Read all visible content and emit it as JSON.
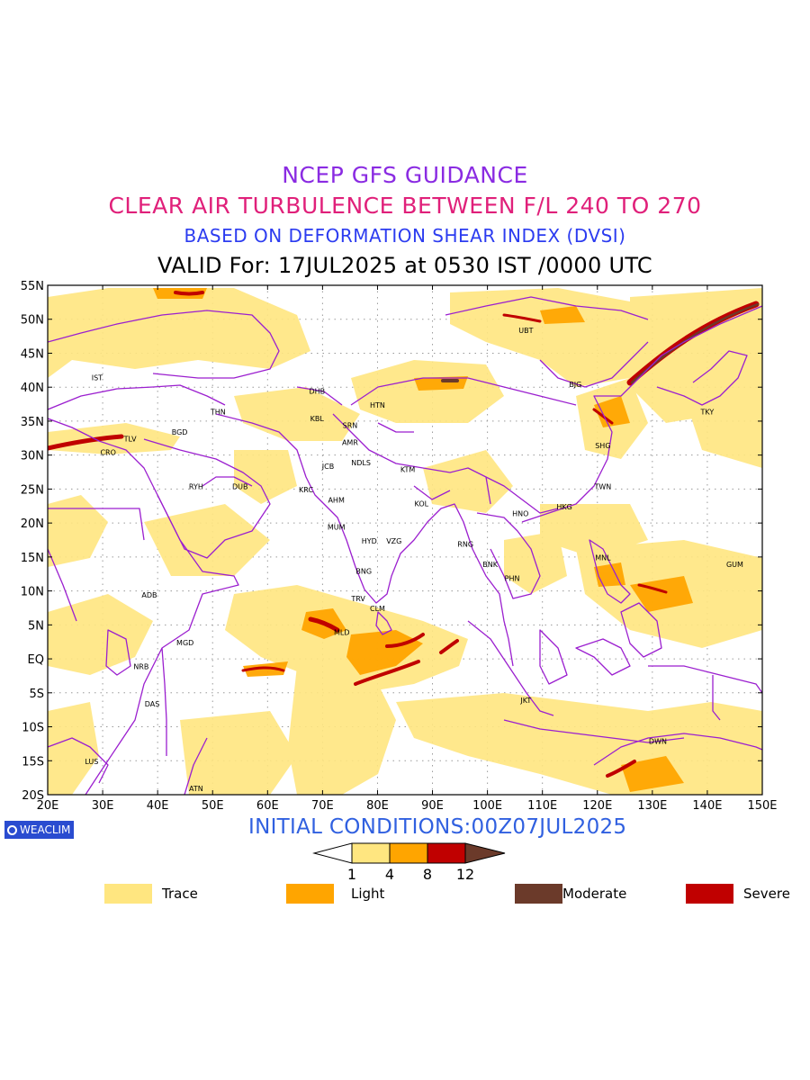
{
  "titles": {
    "line1": "NCEP GFS GUIDANCE",
    "line2": "CLEAR AIR TURBULENCE BETWEEN F/L 240 TO 270",
    "line3": "BASED ON DEFORMATION SHEAR INDEX (DVSI)",
    "line4": "VALID For: 17JUL2025 at 0530 IST /0000 UTC"
  },
  "colors": {
    "title1": "#8a2be2",
    "title2": "#e0207a",
    "title3": "#2c3cf0",
    "boundary": "#9b1fcf",
    "trace": "#ffe680",
    "light": "#ffa500",
    "moderate": "#6b3a2a",
    "severe": "#c00000"
  },
  "axes": {
    "lat_labels": [
      "55N",
      "50N",
      "45N",
      "40N",
      "35N",
      "30N",
      "25N",
      "20N",
      "15N",
      "10N",
      "5N",
      "EQ",
      "5S",
      "10S",
      "15S",
      "20S"
    ],
    "lon_labels": [
      "20E",
      "30E",
      "40E",
      "50E",
      "60E",
      "70E",
      "80E",
      "90E",
      "100E",
      "110E",
      "120E",
      "130E",
      "140E",
      "150E"
    ]
  },
  "stations": [
    {
      "code": "UBT",
      "lon": 107,
      "lat": 48
    },
    {
      "code": "IST",
      "lon": 29,
      "lat": 41
    },
    {
      "code": "DHB",
      "lon": 69,
      "lat": 39
    },
    {
      "code": "HTN",
      "lon": 80,
      "lat": 37
    },
    {
      "code": "BJG",
      "lon": 116,
      "lat": 40
    },
    {
      "code": "THN",
      "lon": 51,
      "lat": 36
    },
    {
      "code": "KBL",
      "lon": 69,
      "lat": 35
    },
    {
      "code": "SRN",
      "lon": 75,
      "lat": 34
    },
    {
      "code": "TKY",
      "lon": 140,
      "lat": 36
    },
    {
      "code": "BGD",
      "lon": 44,
      "lat": 33
    },
    {
      "code": "TLV",
      "lon": 35,
      "lat": 32
    },
    {
      "code": "AMR",
      "lon": 75,
      "lat": 31.5
    },
    {
      "code": "SHG",
      "lon": 121,
      "lat": 31
    },
    {
      "code": "CRO",
      "lon": 31,
      "lat": 30
    },
    {
      "code": "JCB",
      "lon": 71,
      "lat": 28
    },
    {
      "code": "NDLS",
      "lon": 77,
      "lat": 28.5
    },
    {
      "code": "KTM",
      "lon": 85.5,
      "lat": 27.5
    },
    {
      "code": "RYH",
      "lon": 47,
      "lat": 25
    },
    {
      "code": "DUB",
      "lon": 55,
      "lat": 25
    },
    {
      "code": "KRC",
      "lon": 67,
      "lat": 24.5
    },
    {
      "code": "TWN",
      "lon": 121,
      "lat": 25
    },
    {
      "code": "AHM",
      "lon": 72.5,
      "lat": 23
    },
    {
      "code": "KOL",
      "lon": 88,
      "lat": 22.5
    },
    {
      "code": "HKG",
      "lon": 114,
      "lat": 22
    },
    {
      "code": "HNO",
      "lon": 106,
      "lat": 21
    },
    {
      "code": "MUM",
      "lon": 72.5,
      "lat": 19
    },
    {
      "code": "HYD",
      "lon": 78.5,
      "lat": 17
    },
    {
      "code": "VZG",
      "lon": 83,
      "lat": 17
    },
    {
      "code": "RNG",
      "lon": 96,
      "lat": 16.5
    },
    {
      "code": "MNL",
      "lon": 121,
      "lat": 14.5
    },
    {
      "code": "BNK",
      "lon": 100.5,
      "lat": 13.5
    },
    {
      "code": "GUM",
      "lon": 145,
      "lat": 13.5
    },
    {
      "code": "PHN",
      "lon": 104.5,
      "lat": 11.5
    },
    {
      "code": "BNG",
      "lon": 77.5,
      "lat": 12.5
    },
    {
      "code": "ADB",
      "lon": 38.5,
      "lat": 9
    },
    {
      "code": "TRV",
      "lon": 76.5,
      "lat": 8.5
    },
    {
      "code": "CLM",
      "lon": 80,
      "lat": 7
    },
    {
      "code": "MLD",
      "lon": 73.5,
      "lat": 3.5
    },
    {
      "code": "MGD",
      "lon": 45,
      "lat": 2
    },
    {
      "code": "NRB",
      "lon": 37,
      "lat": -1.5
    },
    {
      "code": "DAS",
      "lon": 39,
      "lat": -7
    },
    {
      "code": "JKT",
      "lon": 107,
      "lat": -6.5
    },
    {
      "code": "DWN",
      "lon": 131,
      "lat": -12.5
    },
    {
      "code": "LUS",
      "lon": 28,
      "lat": -15.5
    },
    {
      "code": "ATN",
      "lon": 47,
      "lat": -19.5
    }
  ],
  "turbulence": {
    "legend_items": [
      {
        "label": "Trace",
        "color": "#ffe680"
      },
      {
        "label": "Light",
        "color": "#ffa500"
      },
      {
        "label": "Moderate",
        "color": "#6b3a2a"
      },
      {
        "label": "Severe",
        "color": "#c00000"
      }
    ],
    "colorbar_ticks": [
      "1",
      "4",
      "8",
      "12"
    ]
  },
  "initial_conditions": "INITIAL CONDITIONS:00Z07JUL2025",
  "brand": "WEACLIM"
}
